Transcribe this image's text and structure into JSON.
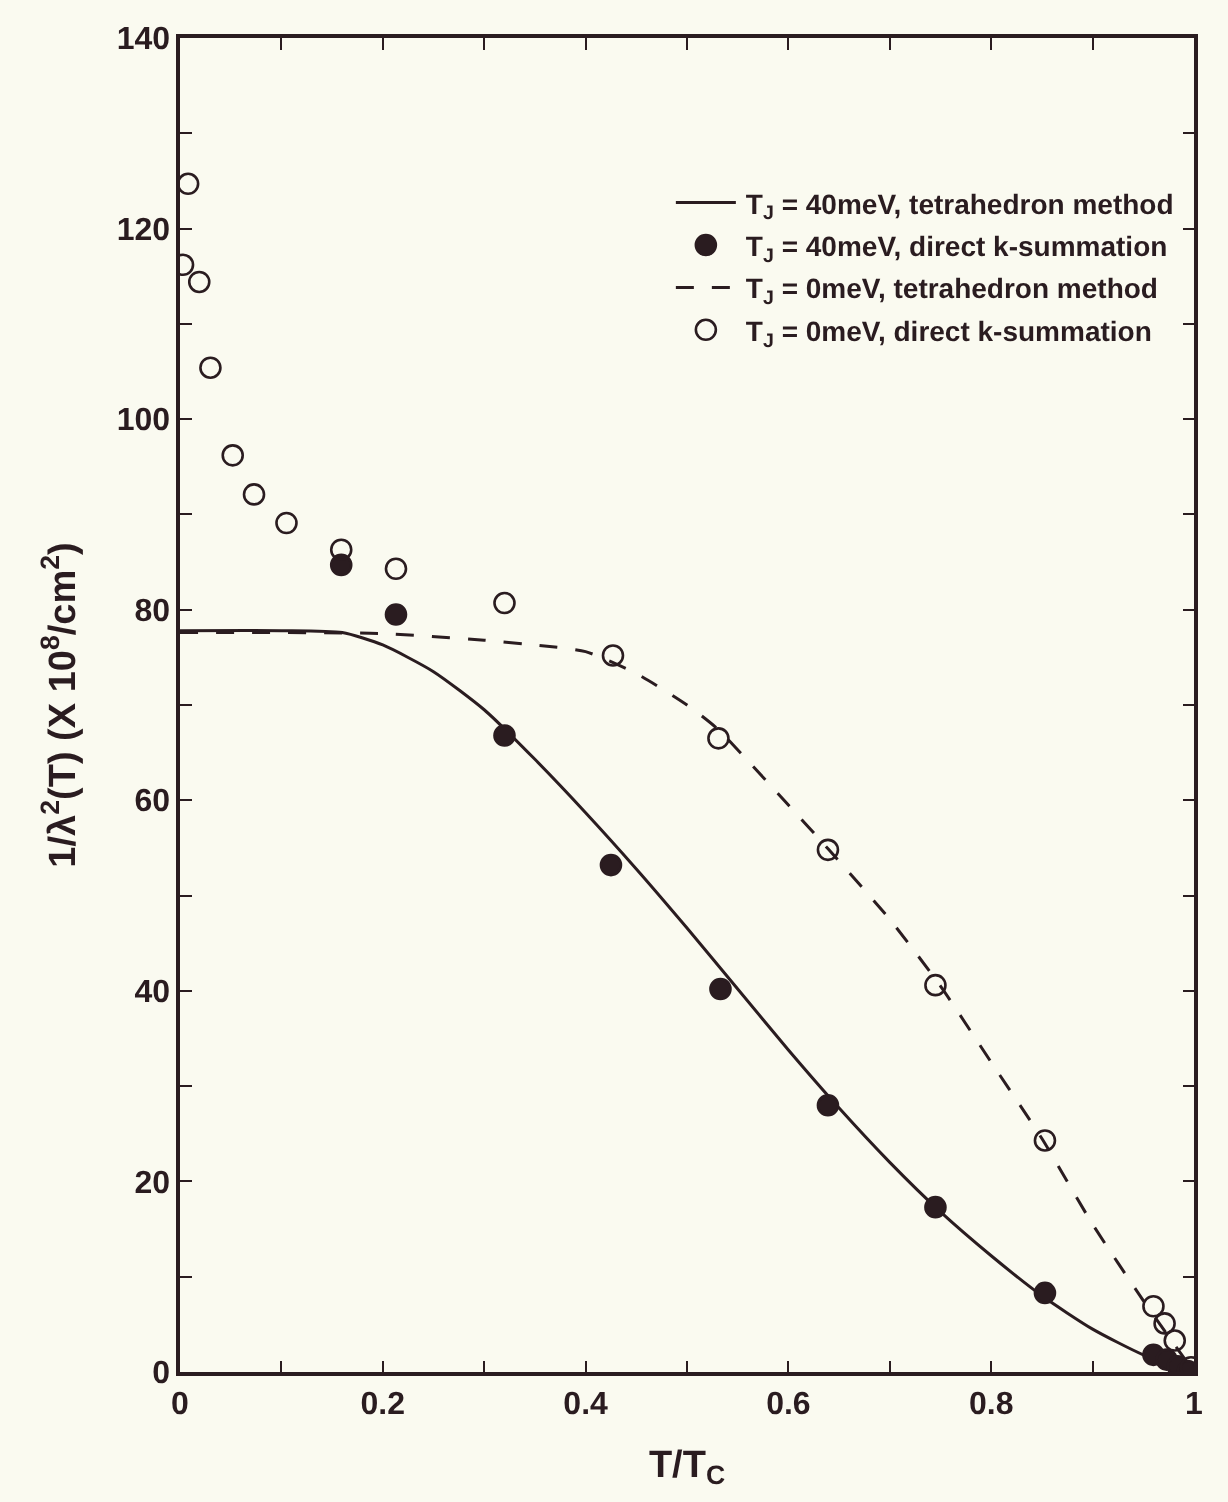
{
  "chart_data": {
    "type": "line",
    "xlabel": "T/T$_{C}$",
    "ylabel": "1/λ$^{2}$(T) (X 10$^{8}$/cm$^{2}$)",
    "xlim": [
      0,
      1
    ],
    "ylim": [
      0,
      140
    ],
    "xticks": [
      0,
      {
        "value": 0.1,
        "label": null
      },
      0.2,
      {
        "value": 0.3,
        "label": null
      },
      0.4,
      {
        "value": 0.5,
        "label": null
      },
      0.6,
      {
        "value": 0.7,
        "label": null
      },
      0.8,
      {
        "value": 0.9,
        "label": null
      },
      1
    ],
    "yticks": [
      0,
      {
        "value": 10,
        "label": null
      },
      20,
      {
        "value": 30,
        "label": null
      },
      40,
      {
        "value": 50,
        "label": null
      },
      60,
      {
        "value": 70,
        "label": null
      },
      80,
      {
        "value": 90,
        "label": null
      },
      100,
      {
        "value": 110,
        "label": null
      },
      120,
      {
        "value": 130,
        "label": null
      },
      140
    ],
    "grid": false,
    "legend": "top right",
    "series": [
      {
        "name": "T$_{J}$ = 40meV, tetrahedron method",
        "color": "#2a1c20",
        "marker": "none",
        "line_style": "solid",
        "x": [
          0,
          0.1,
          0.16,
          0.2,
          0.25,
          0.3,
          0.35,
          0.4,
          0.45,
          0.5,
          0.55,
          0.6,
          0.65,
          0.7,
          0.75,
          0.8,
          0.85,
          0.9,
          0.95,
          1.0
        ],
        "values": [
          77.8,
          77.8,
          77.6,
          76.3,
          73.5,
          69.5,
          64.3,
          58.7,
          52.8,
          46.6,
          40.2,
          33.8,
          27.7,
          22.0,
          16.8,
          12.2,
          8.0,
          4.5,
          1.8,
          0
        ]
      },
      {
        "name": "T$_{J}$ = 40meV, direct k-summation",
        "type": "scatter",
        "color": "#2a1c20",
        "marker": "circle",
        "x": [
          0.159,
          0.213,
          0.32,
          0.425,
          0.533,
          0.639,
          0.745,
          0.853,
          0.96,
          0.973,
          0.984,
          0.994
        ],
        "values": [
          84.7,
          79.5,
          66.8,
          53.2,
          40.2,
          28.0,
          17.3,
          8.3,
          1.8,
          1.3,
          0.6,
          0.1
        ]
      },
      {
        "name": "T$_{J}$ = 0meV, tetrahedron method",
        "color": "#2a1c20",
        "marker": "none",
        "line_style": "dashed",
        "x": [
          0,
          0.2,
          0.3,
          0.35,
          0.4,
          0.45,
          0.5,
          0.53,
          0.6,
          0.64,
          0.7,
          0.75,
          0.8,
          0.85,
          0.9,
          0.95,
          1.0
        ],
        "values": [
          77.6,
          77.5,
          76.8,
          76.3,
          75.6,
          73.3,
          70.0,
          67.5,
          59.5,
          54.8,
          47.5,
          40.5,
          32.5,
          24.5,
          15.5,
          7.5,
          0
        ]
      },
      {
        "name": "T$_{J}$ = 0meV, direct k-summation",
        "type": "scatter",
        "color": "#2a1c20",
        "marker": "circle",
        "x": [
          0.003,
          0.008,
          0.019,
          0.03,
          0.052,
          0.073,
          0.105,
          0.159,
          0.213,
          0.32,
          0.427,
          0.531,
          0.639,
          0.745,
          0.853,
          0.96,
          0.971,
          0.981,
          0.992,
          0.997
        ],
        "values": [
          116.2,
          124.7,
          114.4,
          105.4,
          96.2,
          92.1,
          89.1,
          86.3,
          84.3,
          80.7,
          75.2,
          66.5,
          54.8,
          40.6,
          24.3,
          6.9,
          5.1,
          3.3,
          null,
          0.5
        ]
      }
    ]
  }
}
